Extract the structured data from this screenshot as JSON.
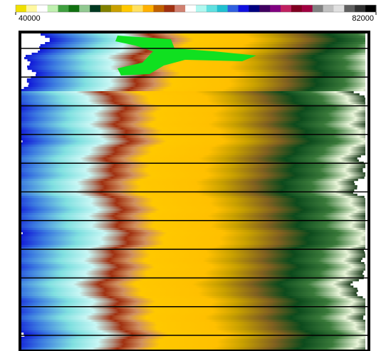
{
  "chart_data": {
    "type": "heatmap",
    "colorbar_lim": [
      40000,
      82000
    ],
    "colorbar_ticks": [
      40000,
      82000
    ],
    "colormap": [
      "#f0e000",
      "#fff8a0",
      "#ffffff",
      "#c0f0b0",
      "#40a040",
      "#107010",
      "#90c890",
      "#003820",
      "#808000",
      "#c8a000",
      "#ffc800",
      "#ffe060",
      "#ffb000",
      "#c06000",
      "#a03010",
      "#d08070",
      "#ffffff",
      "#b0f8f0",
      "#60e0e0",
      "#20c0d0",
      "#3060e0",
      "#1010e0",
      "#000080",
      "#400060",
      "#800080",
      "#c02060",
      "#800020",
      "#a00040",
      "#808080",
      "#c0c0c0",
      "#e0e0e0",
      "#606060",
      "#303030",
      "#000000"
    ]
  }
}
